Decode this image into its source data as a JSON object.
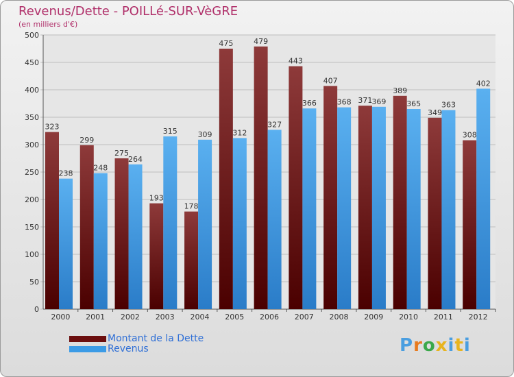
{
  "title": "Revenus/Dette - POILLé-SUR-VèGRE",
  "subtitle": "(en milliers d'€)",
  "chart_data": {
    "type": "bar",
    "title": "Revenus/Dette - POILLé-SUR-VèGRE",
    "ylabel": "(en milliers d'€)",
    "xlabel": "",
    "categories": [
      "2000",
      "2001",
      "2002",
      "2003",
      "2004",
      "2005",
      "2006",
      "2007",
      "2008",
      "2009",
      "2010",
      "2011",
      "2012"
    ],
    "ylim": [
      0,
      500
    ],
    "yticks": [
      0,
      50,
      100,
      150,
      200,
      250,
      300,
      350,
      400,
      450,
      500
    ],
    "grid": true,
    "series": [
      {
        "name": "Montant de la Dette",
        "color": "#7a1a1a",
        "values": [
          323,
          299,
          275,
          193,
          178,
          475,
          479,
          443,
          407,
          371,
          389,
          349,
          308
        ]
      },
      {
        "name": "Revenus",
        "color": "#4aa3e8",
        "values": [
          238,
          248,
          264,
          315,
          309,
          312,
          327,
          366,
          368,
          369,
          365,
          363,
          402
        ]
      }
    ],
    "legend_position": "bottom-left"
  },
  "legend": [
    {
      "label": "Montant de la Dette",
      "color": "#6b0e0e"
    },
    {
      "label": "Revenus",
      "color": "#3b9be6"
    }
  ],
  "logo": {
    "text": [
      "P",
      "r",
      "o",
      "x",
      "i",
      "t",
      "i"
    ],
    "colors": [
      "#4a9ee0",
      "#e87a1e",
      "#3aa84a",
      "#e8b41e",
      "#4a9ee0",
      "#e8b41e",
      "#4a9ee0"
    ]
  }
}
